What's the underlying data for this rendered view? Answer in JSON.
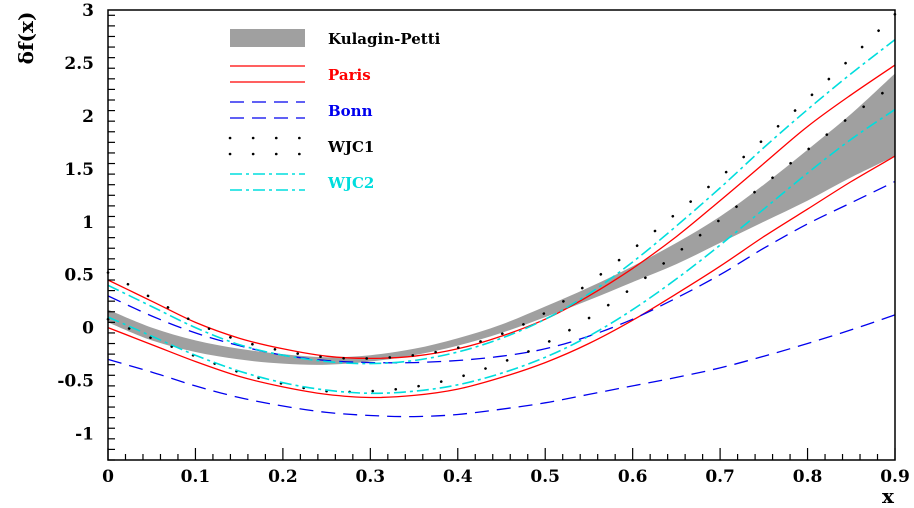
{
  "chart_data": {
    "type": "line",
    "title": "",
    "xlabel": "x",
    "ylabel": "δf(x)",
    "xlim": [
      0,
      0.9
    ],
    "ylim": [
      -1.25,
      3
    ],
    "x_ticks": [
      0,
      0.1,
      0.2,
      0.3,
      0.4,
      0.5,
      0.6,
      0.7,
      0.8,
      0.9
    ],
    "x_tick_labels": [
      "0",
      "0.1",
      "0.2",
      "0.3",
      "0.4",
      "0.5",
      "0.6",
      "0.7",
      "0.8",
      "0.9"
    ],
    "y_ticks": [
      -1,
      -0.5,
      0,
      0.5,
      1,
      1.5,
      2,
      2.5,
      3
    ],
    "y_tick_labels": [
      "-1",
      "-0.5",
      "0",
      "0.5",
      "1",
      "1.5",
      "2",
      "2.5",
      "3"
    ],
    "grid": false,
    "legend_position": "top-left",
    "band": {
      "name": "Kulagin-Petti",
      "color": "#a0a0a0",
      "x": [
        0,
        0.05,
        0.1,
        0.15,
        0.2,
        0.25,
        0.3,
        0.35,
        0.4,
        0.45,
        0.5,
        0.55,
        0.6,
        0.65,
        0.7,
        0.75,
        0.8,
        0.85,
        0.9
      ],
      "upper": [
        0.17,
        0.0,
        -0.12,
        -0.2,
        -0.25,
        -0.28,
        -0.26,
        -0.2,
        -0.1,
        0.03,
        0.2,
        0.38,
        0.58,
        0.8,
        1.05,
        1.35,
        1.68,
        2.02,
        2.4
      ],
      "lower": [
        0.05,
        -0.12,
        -0.23,
        -0.3,
        -0.34,
        -0.35,
        -0.32,
        -0.26,
        -0.17,
        -0.05,
        0.1,
        0.26,
        0.43,
        0.6,
        0.8,
        1.0,
        1.2,
        1.42,
        1.62
      ]
    },
    "series": [
      {
        "name": "Paris",
        "color": "#ff0000",
        "style": "solid",
        "curves": [
          {
            "x": [
              0,
              0.05,
              0.1,
              0.15,
              0.2,
              0.25,
              0.3,
              0.35,
              0.4,
              0.45,
              0.5,
              0.55,
              0.6,
              0.65,
              0.7,
              0.75,
              0.8,
              0.85,
              0.9
            ],
            "y": [
              0.45,
              0.25,
              0.05,
              -0.1,
              -0.2,
              -0.27,
              -0.29,
              -0.27,
              -0.2,
              -0.08,
              0.08,
              0.3,
              0.56,
              0.86,
              1.2,
              1.55,
              1.9,
              2.2,
              2.48
            ]
          },
          {
            "x": [
              0,
              0.05,
              0.1,
              0.15,
              0.2,
              0.25,
              0.3,
              0.35,
              0.4,
              0.45,
              0.5,
              0.55,
              0.6,
              0.65,
              0.7,
              0.75,
              0.8,
              0.85,
              0.9
            ],
            "y": [
              0.0,
              -0.16,
              -0.32,
              -0.46,
              -0.56,
              -0.63,
              -0.66,
              -0.64,
              -0.58,
              -0.47,
              -0.33,
              -0.15,
              0.07,
              0.32,
              0.58,
              0.86,
              1.12,
              1.38,
              1.62
            ]
          }
        ]
      },
      {
        "name": "Bonn",
        "color": "#0000ee",
        "style": "dashed",
        "curves": [
          {
            "x": [
              0,
              0.05,
              0.1,
              0.15,
              0.2,
              0.25,
              0.3,
              0.35,
              0.4,
              0.45,
              0.5,
              0.55,
              0.6,
              0.65,
              0.7,
              0.75,
              0.8,
              0.85,
              0.9
            ],
            "y": [
              0.3,
              0.11,
              -0.05,
              -0.17,
              -0.26,
              -0.31,
              -0.33,
              -0.33,
              -0.31,
              -0.27,
              -0.2,
              -0.08,
              0.08,
              0.28,
              0.5,
              0.75,
              0.98,
              1.18,
              1.38
            ]
          },
          {
            "x": [
              0,
              0.05,
              0.1,
              0.15,
              0.2,
              0.25,
              0.3,
              0.35,
              0.4,
              0.45,
              0.5,
              0.55,
              0.6,
              0.65,
              0.7,
              0.75,
              0.8,
              0.85,
              0.9
            ],
            "y": [
              -0.3,
              -0.42,
              -0.55,
              -0.66,
              -0.74,
              -0.8,
              -0.83,
              -0.84,
              -0.82,
              -0.77,
              -0.71,
              -0.63,
              -0.55,
              -0.47,
              -0.38,
              -0.27,
              -0.15,
              -0.02,
              0.12
            ]
          }
        ]
      },
      {
        "name": "WJC1",
        "color": "#000000",
        "style": "dotted",
        "curves": [
          {
            "x": [
              0,
              0.05,
              0.1,
              0.15,
              0.2,
              0.25,
              0.3,
              0.35,
              0.4,
              0.45,
              0.5,
              0.55,
              0.6,
              0.65,
              0.7,
              0.75,
              0.8,
              0.85,
              0.9
            ],
            "y": [
              0.52,
              0.28,
              0.05,
              -0.12,
              -0.22,
              -0.28,
              -0.29,
              -0.26,
              -0.19,
              -0.06,
              0.14,
              0.42,
              0.74,
              1.08,
              1.42,
              1.78,
              2.16,
              2.55,
              2.96
            ]
          },
          {
            "x": [
              0,
              0.05,
              0.1,
              0.15,
              0.2,
              0.25,
              0.3,
              0.35,
              0.4,
              0.45,
              0.5,
              0.55,
              0.6,
              0.65,
              0.7,
              0.75,
              0.8,
              0.85,
              0.9
            ],
            "y": [
              0.08,
              -0.1,
              -0.27,
              -0.42,
              -0.53,
              -0.6,
              -0.6,
              -0.56,
              -0.47,
              -0.33,
              -0.15,
              0.09,
              0.38,
              0.7,
              1.02,
              1.35,
              1.68,
              2.0,
              2.3
            ]
          }
        ]
      },
      {
        "name": "WJC2",
        "color": "#00dddd",
        "style": "dashdot",
        "curves": [
          {
            "x": [
              0,
              0.05,
              0.1,
              0.15,
              0.2,
              0.25,
              0.3,
              0.35,
              0.4,
              0.45,
              0.5,
              0.55,
              0.6,
              0.65,
              0.7,
              0.75,
              0.8,
              0.85,
              0.9
            ],
            "y": [
              0.4,
              0.2,
              0.0,
              -0.16,
              -0.26,
              -0.32,
              -0.34,
              -0.31,
              -0.23,
              -0.1,
              0.08,
              0.32,
              0.62,
              0.96,
              1.32,
              1.7,
              2.06,
              2.4,
              2.72
            ]
          },
          {
            "x": [
              0,
              0.05,
              0.1,
              0.15,
              0.2,
              0.25,
              0.3,
              0.35,
              0.4,
              0.45,
              0.5,
              0.55,
              0.6,
              0.65,
              0.7,
              0.75,
              0.8,
              0.85,
              0.9
            ],
            "y": [
              0.1,
              -0.08,
              -0.26,
              -0.41,
              -0.52,
              -0.59,
              -0.62,
              -0.6,
              -0.54,
              -0.43,
              -0.28,
              -0.08,
              0.17,
              0.46,
              0.78,
              1.12,
              1.46,
              1.78,
              2.06
            ]
          }
        ]
      }
    ]
  }
}
